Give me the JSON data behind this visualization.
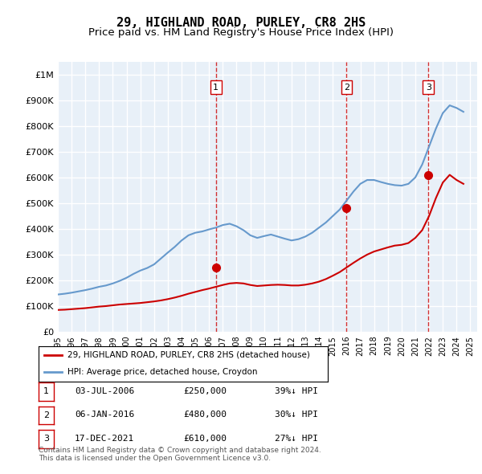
{
  "title": "29, HIGHLAND ROAD, PURLEY, CR8 2HS",
  "subtitle": "Price paid vs. HM Land Registry's House Price Index (HPI)",
  "title_fontsize": 11,
  "subtitle_fontsize": 9.5,
  "background_color": "#ffffff",
  "plot_bg_color": "#e8f0f8",
  "grid_color": "#ffffff",
  "ylim": [
    0,
    1050000
  ],
  "yticks": [
    0,
    100000,
    200000,
    300000,
    400000,
    500000,
    600000,
    700000,
    800000,
    900000,
    1000000
  ],
  "ytick_labels": [
    "£0",
    "£100K",
    "£200K",
    "£300K",
    "£400K",
    "£500K",
    "£600K",
    "£700K",
    "£800K",
    "£900K",
    "£1M"
  ],
  "hpi_color": "#6699cc",
  "price_color": "#cc0000",
  "sale_marker_color": "#cc0000",
  "vline_color": "#cc0000",
  "footnote": "Contains HM Land Registry data © Crown copyright and database right 2024.\nThis data is licensed under the Open Government Licence v3.0.",
  "legend_label_price": "29, HIGHLAND ROAD, PURLEY, CR8 2HS (detached house)",
  "legend_label_hpi": "HPI: Average price, detached house, Croydon",
  "sales": [
    {
      "num": 1,
      "date": "03-JUL-2006",
      "year": 2006.5,
      "price": 250000,
      "pct": "39%↓ HPI"
    },
    {
      "num": 2,
      "date": "06-JAN-2016",
      "year": 2016.0,
      "price": 480000,
      "pct": "30%↓ HPI"
    },
    {
      "num": 3,
      "date": "17-DEC-2021",
      "year": 2021.95,
      "price": 610000,
      "pct": "27%↓ HPI"
    }
  ],
  "hpi_data": {
    "years": [
      1995,
      1995.5,
      1996,
      1996.5,
      1997,
      1997.5,
      1998,
      1998.5,
      1999,
      1999.5,
      2000,
      2000.5,
      2001,
      2001.5,
      2002,
      2002.5,
      2003,
      2003.5,
      2004,
      2004.5,
      2005,
      2005.5,
      2006,
      2006.5,
      2007,
      2007.5,
      2008,
      2008.5,
      2009,
      2009.5,
      2010,
      2010.5,
      2011,
      2011.5,
      2012,
      2012.5,
      2013,
      2013.5,
      2014,
      2014.5,
      2015,
      2015.5,
      2016,
      2016.5,
      2017,
      2017.5,
      2018,
      2018.5,
      2019,
      2019.5,
      2020,
      2020.5,
      2021,
      2021.5,
      2022,
      2022.5,
      2023,
      2023.5,
      2024,
      2024.5
    ],
    "values": [
      145000,
      148000,
      152000,
      157000,
      162000,
      168000,
      175000,
      180000,
      188000,
      198000,
      210000,
      225000,
      238000,
      248000,
      262000,
      285000,
      308000,
      330000,
      355000,
      375000,
      385000,
      390000,
      398000,
      405000,
      415000,
      420000,
      410000,
      395000,
      375000,
      365000,
      372000,
      378000,
      370000,
      362000,
      355000,
      360000,
      370000,
      385000,
      405000,
      425000,
      450000,
      475000,
      510000,
      545000,
      575000,
      590000,
      590000,
      582000,
      575000,
      570000,
      568000,
      575000,
      600000,
      650000,
      720000,
      790000,
      850000,
      880000,
      870000,
      855000
    ]
  },
  "price_data": {
    "years": [
      1995,
      1995.5,
      1996,
      1996.5,
      1997,
      1997.5,
      1998,
      1998.5,
      1999,
      1999.5,
      2000,
      2000.5,
      2001,
      2001.5,
      2002,
      2002.5,
      2003,
      2003.5,
      2004,
      2004.5,
      2005,
      2005.5,
      2006,
      2006.5,
      2007,
      2007.5,
      2008,
      2008.5,
      2009,
      2009.5,
      2010,
      2010.5,
      2011,
      2011.5,
      2012,
      2012.5,
      2013,
      2013.5,
      2014,
      2014.5,
      2015,
      2015.5,
      2016,
      2016.5,
      2017,
      2017.5,
      2018,
      2018.5,
      2019,
      2019.5,
      2020,
      2020.5,
      2021,
      2021.5,
      2022,
      2022.5,
      2023,
      2023.5,
      2024,
      2024.5
    ],
    "values": [
      85000,
      86000,
      88000,
      90000,
      92000,
      95000,
      98000,
      100000,
      103000,
      106000,
      108000,
      110000,
      112000,
      115000,
      118000,
      122000,
      127000,
      133000,
      140000,
      148000,
      155000,
      162000,
      168000,
      175000,
      182000,
      188000,
      190000,
      188000,
      182000,
      178000,
      180000,
      182000,
      183000,
      182000,
      180000,
      180000,
      183000,
      188000,
      195000,
      205000,
      218000,
      232000,
      250000,
      268000,
      285000,
      300000,
      312000,
      320000,
      328000,
      335000,
      338000,
      345000,
      365000,
      395000,
      450000,
      520000,
      580000,
      610000,
      590000,
      575000
    ]
  },
  "xtick_years": [
    1995,
    1996,
    1997,
    1998,
    1999,
    2000,
    2001,
    2002,
    2003,
    2004,
    2005,
    2006,
    2007,
    2008,
    2009,
    2010,
    2011,
    2012,
    2013,
    2014,
    2015,
    2016,
    2017,
    2018,
    2019,
    2020,
    2021,
    2022,
    2023,
    2024,
    2025
  ]
}
